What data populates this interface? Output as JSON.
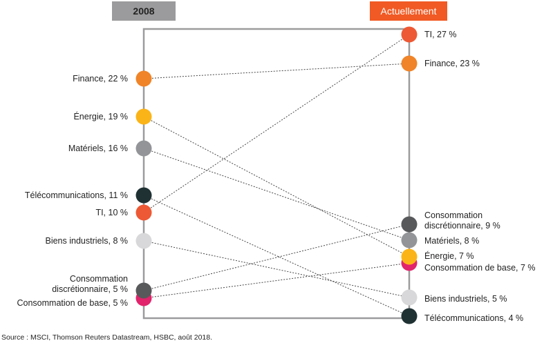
{
  "chart_data": {
    "type": "slope",
    "columns": [
      "2008",
      "Actuellement"
    ],
    "value_unit": "%",
    "series": [
      {
        "name": "Finance",
        "label_2008": "Finance, 22 %",
        "label_now": "Finance, 23 %",
        "v2008": 22,
        "vnow": 23,
        "color": "#f08428"
      },
      {
        "name": "Énergie",
        "label_2008": "Énergie, 19 %",
        "label_now": "Énergie, 7 %",
        "v2008": 19,
        "vnow": 7,
        "color": "#fbb417"
      },
      {
        "name": "Matériels",
        "label_2008": "Matériels, 16 %",
        "label_now": "Matériels, 8 %",
        "v2008": 16,
        "vnow": 8,
        "color": "#929497"
      },
      {
        "name": "Télécommunications",
        "label_2008": "Télécommunications, 11 %",
        "label_now": "Télécommunications, 4 %",
        "v2008": 11,
        "vnow": 4,
        "color": "#1f3133"
      },
      {
        "name": "TI",
        "label_2008": "TI, 10 %",
        "label_now": "TI, 27 %",
        "v2008": 10,
        "vnow": 27,
        "color": "#ed5934"
      },
      {
        "name": "Biens industriels",
        "label_2008": "Biens industriels, 8 %",
        "label_now": "Biens industriels, 5 %",
        "v2008": 8,
        "vnow": 5,
        "color": "#d8d8da"
      },
      {
        "name": "Consommation discrétionnaire",
        "label_2008": "Consommation discrétionnaire, 5 %",
        "label_now": "Consommation discrétionnaire, 9 %",
        "v2008": 5,
        "vnow": 9,
        "color": "#58595b"
      },
      {
        "name": "Consommation de base",
        "label_2008": "Consommation de base, 5 %",
        "label_now": "Consommation de base, 7 %",
        "v2008": 5,
        "vnow": 7,
        "color": "#e1246b"
      }
    ]
  },
  "headers": {
    "left": "2008",
    "right": "Actuellement"
  },
  "source": "Source : MSCI, Thomson Reuters Datastream, HSBC, août 2018."
}
